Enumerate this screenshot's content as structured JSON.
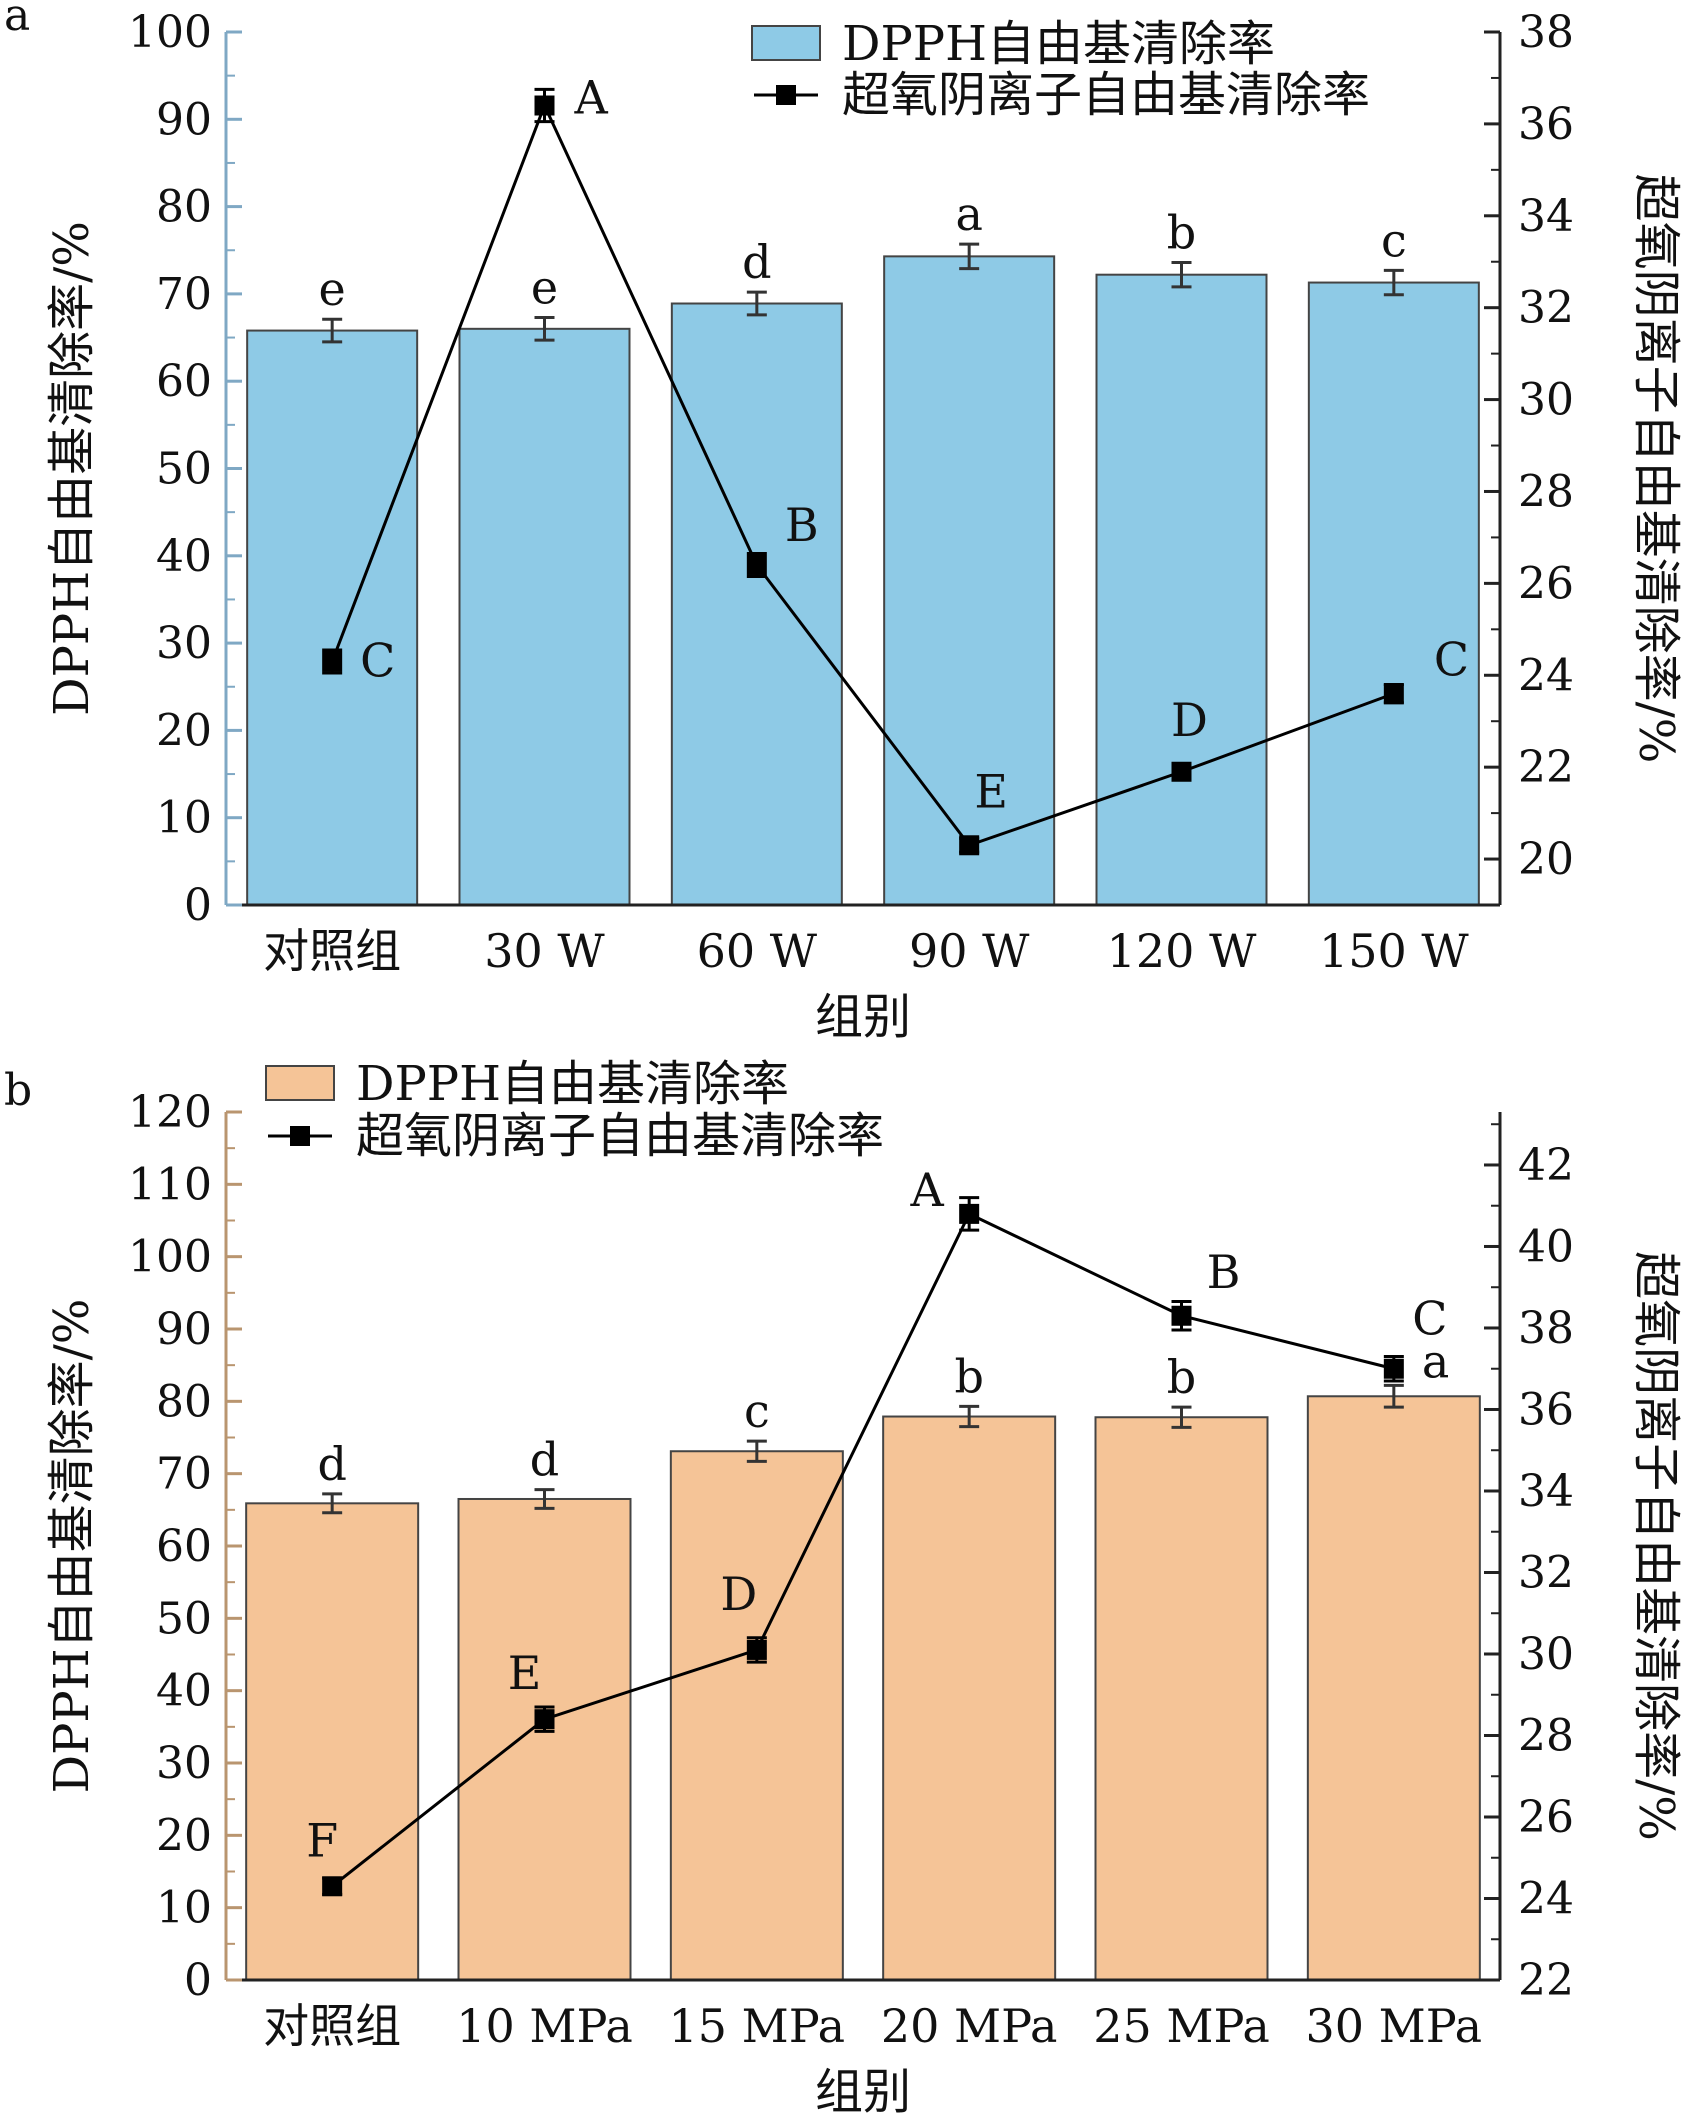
{
  "chart_data": [
    {
      "panel": "a",
      "type": "bar",
      "categories": [
        "对照组",
        "30 W",
        "60 W",
        "90 W",
        "120 W",
        "150 W"
      ],
      "xlabel": "组别",
      "ylabel": "DPPH自由基清除率/%",
      "y2label": "超氧阴离子自由基清除率/%",
      "ylim": [
        0,
        100
      ],
      "y2lim": [
        19,
        38
      ],
      "yticks": [
        0,
        10,
        20,
        30,
        40,
        50,
        60,
        70,
        80,
        90,
        100
      ],
      "y2ticks": [
        20,
        22,
        24,
        26,
        28,
        30,
        32,
        34,
        36,
        38
      ],
      "legend_position": "top-right",
      "bar_color": "#8ECAE6",
      "line_color": "#000000",
      "series": [
        {
          "name": "DPPH自由基清除率",
          "type": "bar",
          "axis": "left",
          "values": [
            65.8,
            66.0,
            68.9,
            74.3,
            72.2,
            71.3
          ],
          "errors": [
            1.3,
            1.3,
            1.3,
            1.4,
            1.4,
            1.4
          ],
          "letters": [
            "e",
            "e",
            "d",
            "a",
            "b",
            "c"
          ]
        },
        {
          "name": "超氧阴离子自由基清除率",
          "type": "line",
          "axis": "right",
          "values": [
            24.3,
            36.4,
            26.4,
            20.3,
            21.9,
            23.6
          ],
          "errors": [
            0.25,
            0.35,
            0.25,
            0.15,
            0.15,
            0.2
          ],
          "letters": [
            "C",
            "A",
            "B",
            "E",
            "D",
            "C"
          ]
        }
      ]
    },
    {
      "panel": "b",
      "type": "bar",
      "categories": [
        "对照组",
        "10 MPa",
        "15 MPa",
        "20 MPa",
        "25 MPa",
        "30 MPa"
      ],
      "xlabel": "组别",
      "ylabel": "DPPH自由基清除率/%",
      "y2label": "超氧阴离子自由基清除率/%",
      "ylim": [
        0,
        120
      ],
      "y2lim": [
        22,
        43.3
      ],
      "yticks": [
        0,
        10,
        20,
        30,
        40,
        50,
        60,
        70,
        80,
        90,
        100,
        110,
        120
      ],
      "y2ticks": [
        22,
        24,
        26,
        28,
        30,
        32,
        34,
        36,
        38,
        40,
        42
      ],
      "legend_position": "top-left",
      "bar_color": "#F5C497",
      "line_color": "#000000",
      "series": [
        {
          "name": "DPPH自由基清除率",
          "type": "bar",
          "axis": "left",
          "values": [
            65.9,
            66.5,
            73.1,
            77.9,
            77.8,
            80.7
          ],
          "errors": [
            1.3,
            1.3,
            1.4,
            1.4,
            1.4,
            1.5
          ],
          "letters": [
            "d",
            "d",
            "c",
            "b",
            "b",
            "a"
          ]
        },
        {
          "name": "超氧阴离子自由基清除率",
          "type": "line",
          "axis": "right",
          "values": [
            24.3,
            28.4,
            30.1,
            40.8,
            38.3,
            37.0
          ],
          "errors": [
            0.2,
            0.3,
            0.3,
            0.4,
            0.35,
            0.3
          ],
          "letters": [
            "F",
            "E",
            "D",
            "A",
            "B",
            "C"
          ]
        }
      ]
    }
  ]
}
